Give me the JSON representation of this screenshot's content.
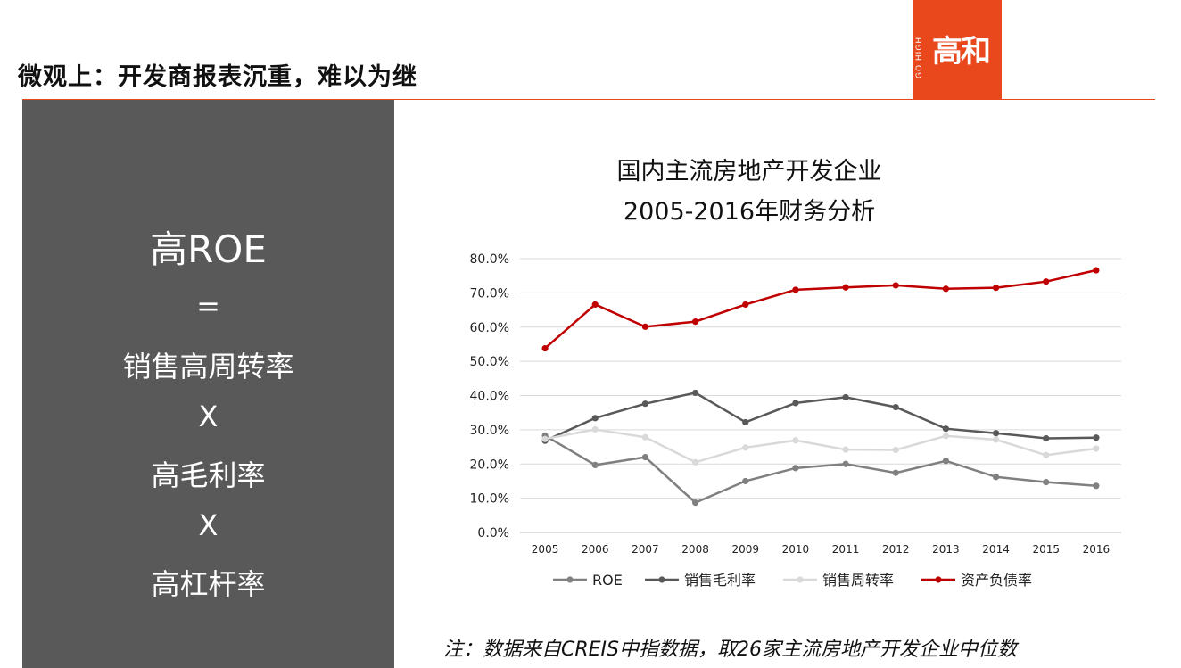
{
  "header": {
    "title": "微观上：开发商报表沉重，难以为继",
    "logo_text": "高和",
    "logo_side_text": "GO HIGH",
    "accent_color": "#e8481c"
  },
  "formula": {
    "lines": [
      "高ROE",
      "=",
      "销售高周转率",
      "X",
      "高毛利率",
      "X",
      "高杠杆率"
    ],
    "panel_color": "#595959"
  },
  "chart_data": {
    "type": "line",
    "title_line1": "国内主流房地产开发企业",
    "title_line2": "2005-2016年财务分析",
    "categories": [
      "2005",
      "2006",
      "2007",
      "2008",
      "2009",
      "2010",
      "2011",
      "2012",
      "2013",
      "2014",
      "2015",
      "2016"
    ],
    "y_ticks": [
      "0.0%",
      "10.0%",
      "20.0%",
      "30.0%",
      "40.0%",
      "50.0%",
      "60.0%",
      "70.0%",
      "80.0%"
    ],
    "ylim": [
      0,
      80
    ],
    "grid": true,
    "legend_position": "bottom",
    "series": [
      {
        "name": "ROE",
        "color": "#808080",
        "values": [
          28.3,
          19.7,
          22.0,
          8.7,
          15.0,
          18.8,
          20.0,
          17.4,
          20.9,
          16.2,
          14.7,
          13.6
        ]
      },
      {
        "name": "销售毛利率",
        "color": "#595959",
        "values": [
          26.8,
          33.4,
          37.6,
          40.8,
          32.2,
          37.8,
          39.5,
          36.6,
          30.3,
          29.0,
          27.5,
          27.7
        ]
      },
      {
        "name": "销售周转率",
        "color": "#d9d9d9",
        "values": [
          27.3,
          30.1,
          27.8,
          20.5,
          24.8,
          26.9,
          24.2,
          24.1,
          28.2,
          27.1,
          22.6,
          24.5
        ]
      },
      {
        "name": "资产负债率",
        "color": "#c00000",
        "values": [
          53.8,
          66.6,
          60.1,
          61.6,
          66.6,
          70.9,
          71.6,
          72.2,
          71.2,
          71.5,
          73.3,
          76.6
        ]
      }
    ]
  },
  "footnote": "注：数据来自CREIS中指数据，取26家主流房地产开发企业中位数"
}
